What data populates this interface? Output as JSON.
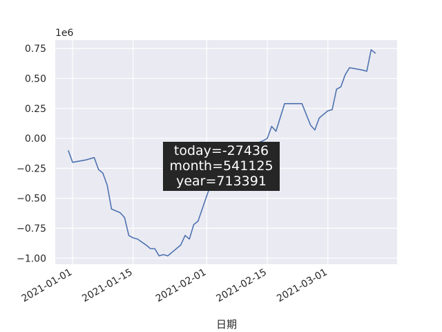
{
  "chart_data": {
    "type": "line",
    "title": "",
    "xlabel": "日期",
    "ylabel": "",
    "y_offset_label": "1e6",
    "ylim": [
      -1.05,
      0.82
    ],
    "xlim": [
      "2020-12-28",
      "2021-03-17"
    ],
    "grid": true,
    "y_ticks": [
      {
        "value": -1.0,
        "label": "−1.00"
      },
      {
        "value": -0.75,
        "label": "−0.75"
      },
      {
        "value": -0.5,
        "label": "−0.50"
      },
      {
        "value": -0.25,
        "label": "−0.25"
      },
      {
        "value": 0.0,
        "label": "0.00"
      },
      {
        "value": 0.25,
        "label": "0.25"
      },
      {
        "value": 0.5,
        "label": "0.50"
      },
      {
        "value": 0.75,
        "label": "0.75"
      }
    ],
    "x_ticks": [
      {
        "value": "2021-01-01",
        "label": "2021-01-01"
      },
      {
        "value": "2021-01-15",
        "label": "2021-01-15"
      },
      {
        "value": "2021-02-01",
        "label": "2021-02-01"
      },
      {
        "value": "2021-02-15",
        "label": "2021-02-15"
      },
      {
        "value": "2021-03-01",
        "label": "2021-03-01"
      }
    ],
    "series": [
      {
        "color": "#4c72b0",
        "points": [
          [
            "2020-12-31",
            -0.1
          ],
          [
            "2021-01-01",
            -0.2
          ],
          [
            "2021-01-04",
            -0.18
          ],
          [
            "2021-01-06",
            -0.16
          ],
          [
            "2021-01-07",
            -0.26
          ],
          [
            "2021-01-08",
            -0.29
          ],
          [
            "2021-01-09",
            -0.39
          ],
          [
            "2021-01-10",
            -0.59
          ],
          [
            "2021-01-12",
            -0.62
          ],
          [
            "2021-01-13",
            -0.66
          ],
          [
            "2021-01-14",
            -0.81
          ],
          [
            "2021-01-15",
            -0.83
          ],
          [
            "2021-01-16",
            -0.84
          ],
          [
            "2021-01-18",
            -0.89
          ],
          [
            "2021-01-19",
            -0.92
          ],
          [
            "2021-01-20",
            -0.92
          ],
          [
            "2021-01-21",
            -0.98
          ],
          [
            "2021-01-22",
            -0.97
          ],
          [
            "2021-01-23",
            -0.98
          ],
          [
            "2021-01-26",
            -0.89
          ],
          [
            "2021-01-27",
            -0.81
          ],
          [
            "2021-01-28",
            -0.84
          ],
          [
            "2021-01-29",
            -0.72
          ],
          [
            "2021-01-30",
            -0.69
          ],
          [
            "2021-02-01",
            -0.48
          ],
          [
            "2021-02-02",
            -0.38
          ],
          [
            "2021-02-05",
            -0.25
          ],
          [
            "2021-02-08",
            -0.13
          ],
          [
            "2021-02-10",
            -0.1
          ],
          [
            "2021-02-12",
            -0.05
          ],
          [
            "2021-02-14",
            -0.02
          ],
          [
            "2021-02-15",
            0.0
          ],
          [
            "2021-02-16",
            0.1
          ],
          [
            "2021-02-17",
            0.06
          ],
          [
            "2021-02-19",
            0.29
          ],
          [
            "2021-02-22",
            0.29
          ],
          [
            "2021-02-23",
            0.29
          ],
          [
            "2021-02-25",
            0.11
          ],
          [
            "2021-02-26",
            0.07
          ],
          [
            "2021-02-27",
            0.17
          ],
          [
            "2021-03-01",
            0.23
          ],
          [
            "2021-03-02",
            0.24
          ],
          [
            "2021-03-03",
            0.41
          ],
          [
            "2021-03-04",
            0.43
          ],
          [
            "2021-03-05",
            0.53
          ],
          [
            "2021-03-06",
            0.59
          ],
          [
            "2021-03-09",
            0.57
          ],
          [
            "2021-03-10",
            0.56
          ],
          [
            "2021-03-11",
            0.74
          ],
          [
            "2021-03-12",
            0.71
          ]
        ]
      }
    ],
    "annotation": {
      "lines": [
        "today=-27436",
        "month=541125",
        "year=713391"
      ],
      "background": "#262626"
    }
  }
}
